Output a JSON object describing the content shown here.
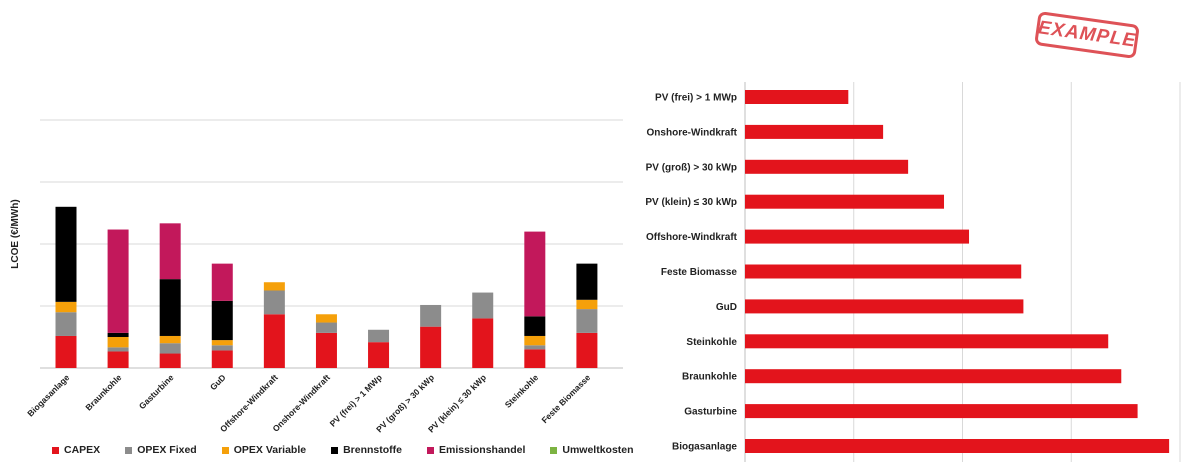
{
  "stamp_text": "EXAMPLE",
  "chart_data": [
    {
      "type": "bar",
      "stacked": true,
      "ylabel": "LCOE (€/MWh)",
      "xlabel": "",
      "title": "",
      "ylim": [
        0,
        24
      ],
      "grid": true,
      "legend_position": "bottom",
      "categories": [
        "Biogasanlage",
        "Braunkohle",
        "Gasturbine",
        "GuD",
        "Offshore-Windkraft",
        "Onshore-Windkraft",
        "PV (frei) > 1 MWp",
        "PV (groß) > 30 kWp",
        "PV (klein) ≤ 30 kWp",
        "Steinkohle",
        "Feste Biomasse"
      ],
      "series": [
        {
          "name": "CAPEX",
          "color": "#e3141c",
          "values": [
            3.1,
            1.6,
            1.4,
            1.7,
            5.2,
            3.4,
            2.5,
            4.0,
            4.8,
            1.8,
            3.4
          ]
        },
        {
          "name": "OPEX Fixed",
          "color": "#8c8c8c",
          "values": [
            2.3,
            0.4,
            1.0,
            0.5,
            2.3,
            1.0,
            1.2,
            2.1,
            2.5,
            0.4,
            2.3
          ]
        },
        {
          "name": "OPEX Variable",
          "color": "#f5a00a",
          "values": [
            1.0,
            1.0,
            0.7,
            0.5,
            0.8,
            0.8,
            0,
            0,
            0,
            0.9,
            0.9
          ]
        },
        {
          "name": "Brennstoffe",
          "color": "#000000",
          "values": [
            9.2,
            0.4,
            5.5,
            3.8,
            0,
            0,
            0,
            0,
            0,
            1.9,
            3.5
          ]
        },
        {
          "name": "Emissionshandel",
          "color": "#c2185b",
          "values": [
            0,
            10.0,
            5.4,
            3.6,
            0,
            0,
            0,
            0,
            0,
            8.2,
            0
          ]
        },
        {
          "name": "Umweltkosten",
          "color": "#7cb342",
          "values": [
            0,
            0,
            0,
            0,
            0,
            0,
            0,
            0,
            0,
            0,
            0
          ]
        }
      ]
    },
    {
      "type": "bar",
      "orientation": "horizontal",
      "title": "",
      "xlabel": "",
      "ylabel": "",
      "xlim": [
        0,
        4
      ],
      "grid": true,
      "color": "#e3141c",
      "categories": [
        "PV (frei) > 1 MWp",
        "Onshore-Windkraft",
        "PV (groß) > 30 kWp",
        "PV (klein) ≤ 30 kWp",
        "Offshore-Windkraft",
        "Feste Biomasse",
        "GuD",
        "Steinkohle",
        "Braunkohle",
        "Gasturbine",
        "Biogasanlage"
      ],
      "values": [
        0.95,
        1.27,
        1.5,
        1.83,
        2.06,
        2.54,
        2.56,
        3.34,
        3.46,
        3.61,
        3.9
      ]
    }
  ]
}
